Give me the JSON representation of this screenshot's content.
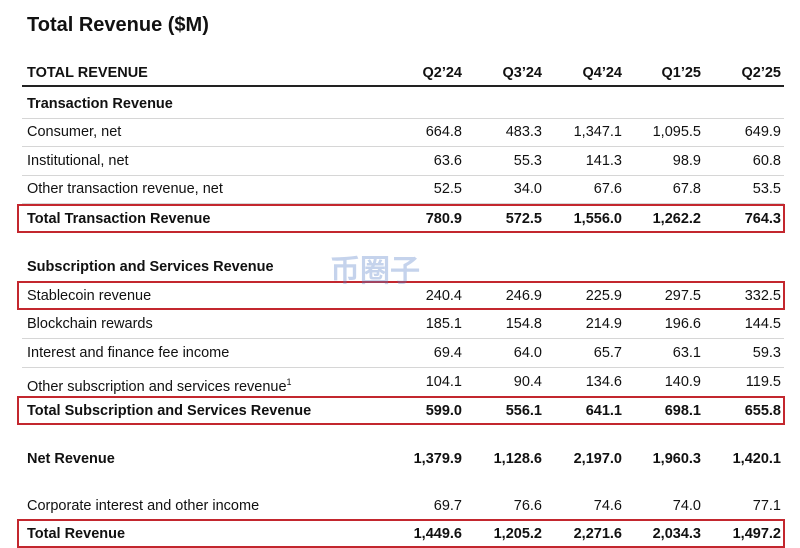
{
  "header": {
    "title": "Total Revenue ($M)"
  },
  "table": {
    "corner": "TOTAL REVENUE",
    "columns": [
      "Q2’24",
      "Q3’24",
      "Q4’24",
      "Q1’25",
      "Q2’25"
    ],
    "rows": [
      {
        "label": "Transaction Revenue",
        "bold": true
      },
      {
        "label": "Consumer, net",
        "values": [
          "664.8",
          "483.3",
          "1,347.1",
          "1,095.5",
          "649.9"
        ]
      },
      {
        "label": "Institutional, net",
        "values": [
          "63.6",
          "55.3",
          "141.3",
          "98.9",
          "60.8"
        ]
      },
      {
        "label": "Other transaction revenue, net",
        "values": [
          "52.5",
          "34.0",
          "67.6",
          "67.8",
          "53.5"
        ]
      },
      {
        "label": "Total Transaction Revenue",
        "values": [
          "780.9",
          "572.5",
          "1,556.0",
          "1,262.2",
          "764.3"
        ],
        "bold": true,
        "highlight": true
      },
      {
        "label": "Subscription and Services Revenue",
        "bold": true
      },
      {
        "label": "Stablecoin revenue",
        "values": [
          "240.4",
          "246.9",
          "225.9",
          "297.5",
          "332.5"
        ],
        "highlight": true
      },
      {
        "label": "Blockchain rewards",
        "values": [
          "185.1",
          "154.8",
          "214.9",
          "196.6",
          "144.5"
        ]
      },
      {
        "label": "Interest and finance fee income",
        "values": [
          "69.4",
          "64.0",
          "65.7",
          "63.1",
          "59.3"
        ]
      },
      {
        "label": "Other subscription and services revenue",
        "note": "1",
        "values": [
          "104.1",
          "90.4",
          "134.6",
          "140.9",
          "119.5"
        ]
      },
      {
        "label": "Total Subscription and Services Revenue",
        "values": [
          "599.0",
          "556.1",
          "641.1",
          "698.1",
          "655.8"
        ],
        "bold": true,
        "highlight": true
      },
      {
        "label": "Net Revenue",
        "values": [
          "1,379.9",
          "1,128.6",
          "2,197.0",
          "1,960.3",
          "1,420.1"
        ],
        "bold": true
      },
      {
        "label": "Corporate interest and other income",
        "values": [
          "69.7",
          "76.6",
          "74.6",
          "74.0",
          "77.1"
        ]
      },
      {
        "label": "Total Revenue",
        "values": [
          "1,449.6",
          "1,205.2",
          "2,271.6",
          "2,034.3",
          "1,497.2"
        ],
        "bold": true,
        "highlight": true
      }
    ]
  },
  "watermark": "币圈子"
}
